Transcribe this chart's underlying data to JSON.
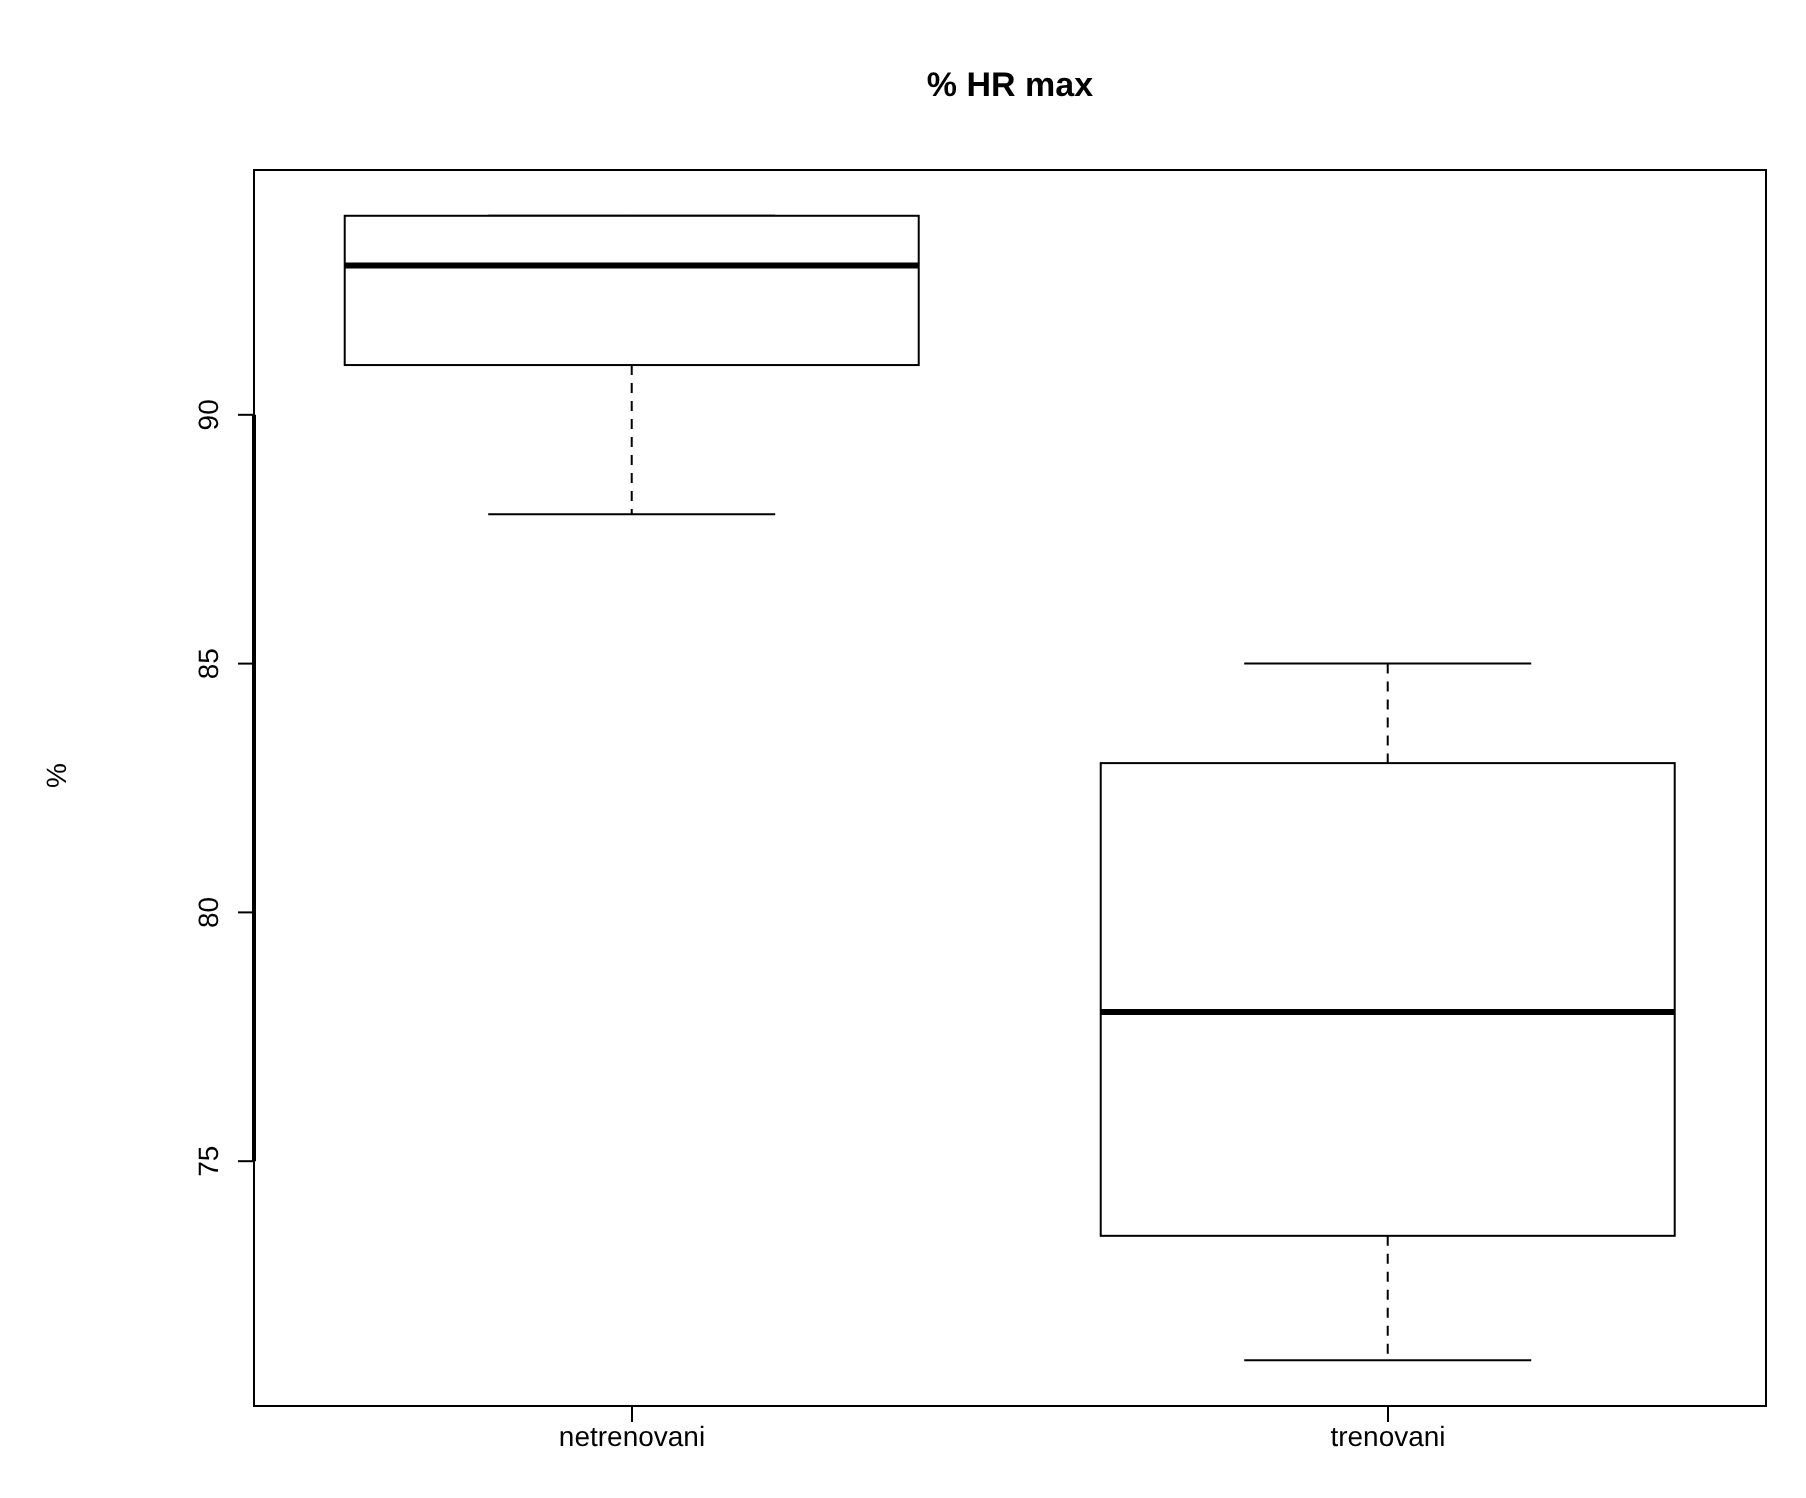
{
  "chart_data": {
    "type": "box",
    "title": "% HR max",
    "ylabel": "%",
    "categories": [
      "netrenovani",
      "trenovani"
    ],
    "boxes": [
      {
        "low": 88,
        "q1": 91,
        "median": 93,
        "q3": 94,
        "high": 94
      },
      {
        "low": 71,
        "q1": 73.5,
        "median": 78,
        "q3": 83,
        "high": 85
      }
    ],
    "ylim": [
      70.08,
      94.92
    ],
    "yticks": [
      75,
      80,
      85,
      90
    ]
  }
}
